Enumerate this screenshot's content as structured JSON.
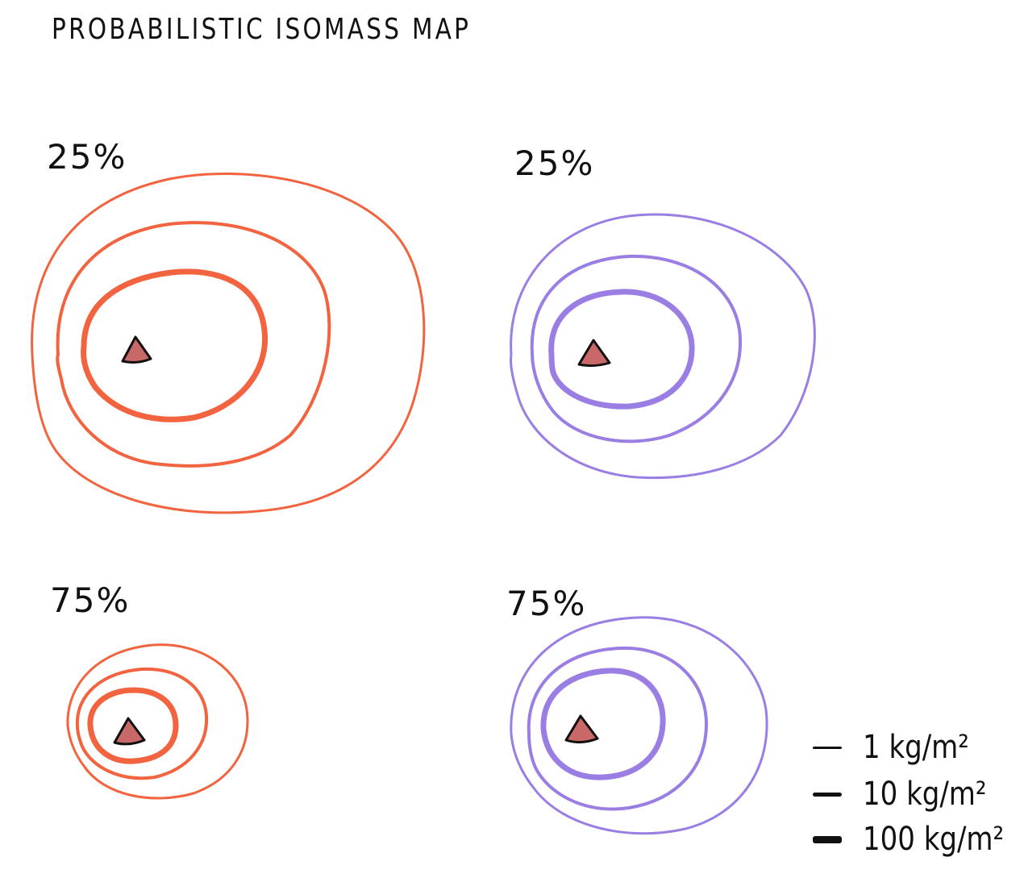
{
  "title": "PROBABILISTIC ISOMASS MAP",
  "colors": {
    "orange": "#f2643f",
    "purple": "#9a7ee3",
    "vent_fill": "#c96868",
    "vent_stroke": "#111111",
    "ink": "#111111"
  },
  "panels": [
    {
      "id": "top-left",
      "label": "25%",
      "color": "orange",
      "contours": [
        "1 kg/m2",
        "10 kg/m2",
        "100 kg/m2"
      ]
    },
    {
      "id": "top-right",
      "label": "25%",
      "color": "purple",
      "contours": [
        "1 kg/m2",
        "10 kg/m2",
        "100 kg/m2"
      ]
    },
    {
      "id": "bottom-left",
      "label": "75%",
      "color": "orange",
      "contours": [
        "1 kg/m2",
        "10 kg/m2",
        "100 kg/m2"
      ]
    },
    {
      "id": "bottom-right",
      "label": "75%",
      "color": "purple",
      "contours": [
        "1 kg/m2",
        "10 kg/m2",
        "100 kg/m2"
      ]
    }
  ],
  "legend": [
    {
      "label": "1 kg/m²",
      "line_weight": "thin"
    },
    {
      "label": "10 kg/m²",
      "line_weight": "medium"
    },
    {
      "label": "100 kg/m²",
      "line_weight": "thick"
    }
  ],
  "vent_icon": "volcano-triangle-icon"
}
